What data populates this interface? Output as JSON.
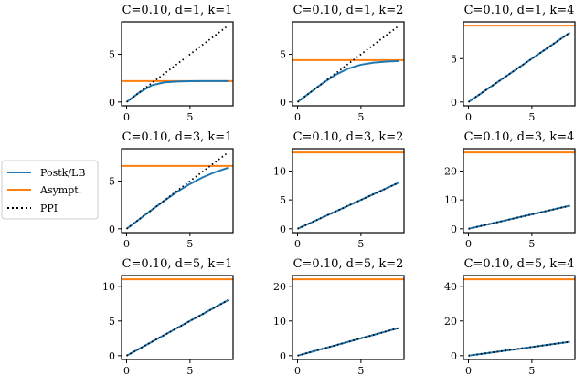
{
  "chart_data": [
    {
      "type": "line",
      "title": "C=0.10, d=1, k=1",
      "xlim": [
        0,
        8
      ],
      "ylim": [
        -0.4,
        8.4
      ],
      "xticks": [
        0,
        5
      ],
      "yticks": [
        0,
        5
      ],
      "asymptote": 2.2,
      "x": [
        0,
        1,
        2,
        3,
        4,
        5,
        6,
        7,
        8
      ],
      "postk": [
        0,
        0.99,
        1.76,
        2.06,
        2.15,
        2.18,
        2.19,
        2.195,
        2.2
      ],
      "ppi": [
        0,
        1,
        2,
        3,
        4,
        5,
        6,
        7,
        8
      ]
    },
    {
      "type": "line",
      "title": "C=0.10, d=1, k=2",
      "xlim": [
        0,
        8
      ],
      "ylim": [
        -0.4,
        8.4
      ],
      "xticks": [
        0,
        5
      ],
      "yticks": [
        0,
        5
      ],
      "asymptote": 4.4,
      "x": [
        0,
        1,
        2,
        3,
        4,
        5,
        6,
        7,
        8
      ],
      "postk": [
        0,
        1.0,
        1.98,
        2.86,
        3.51,
        3.91,
        4.13,
        4.24,
        4.3
      ],
      "ppi": [
        0,
        1,
        2,
        3,
        4,
        5,
        6,
        7,
        8
      ]
    },
    {
      "type": "line",
      "title": "C=0.10, d=1, k=4",
      "xlim": [
        0,
        8
      ],
      "ylim": [
        -0.44,
        9.24
      ],
      "xticks": [
        0,
        5
      ],
      "yticks": [
        0,
        5
      ],
      "asymptote": 8.8,
      "x": [
        0,
        1,
        2,
        3,
        4,
        5,
        6,
        7,
        8
      ],
      "postk": [
        0,
        1,
        2,
        3,
        4,
        5,
        6,
        7,
        8
      ],
      "ppi": [
        0,
        1,
        2,
        3,
        4,
        5,
        6,
        7,
        8
      ]
    },
    {
      "type": "line",
      "title": "C=0.10, d=3, k=1",
      "xlim": [
        0,
        8
      ],
      "ylim": [
        -0.4,
        8.4
      ],
      "xticks": [
        0,
        5
      ],
      "yticks": [
        0,
        5
      ],
      "asymptote": 6.6,
      "x": [
        0,
        1,
        2,
        3,
        4,
        5,
        6,
        7,
        8
      ],
      "postk": [
        0,
        1.0,
        2.0,
        2.97,
        3.9,
        4.7,
        5.4,
        5.95,
        6.4
      ],
      "ppi": [
        0,
        1,
        2,
        3,
        4,
        5,
        6,
        7,
        8
      ]
    },
    {
      "type": "line",
      "title": "C=0.10, d=3, k=2",
      "xlim": [
        0,
        8
      ],
      "ylim": [
        -0.66,
        13.86
      ],
      "xticks": [
        0,
        5
      ],
      "yticks": [
        0,
        5,
        10
      ],
      "asymptote": 13.2,
      "x": [
        0,
        1,
        2,
        3,
        4,
        5,
        6,
        7,
        8
      ],
      "postk": [
        0,
        1,
        2,
        3,
        4,
        5,
        6,
        7,
        8
      ],
      "ppi": [
        0,
        1,
        2,
        3,
        4,
        5,
        6,
        7,
        8
      ]
    },
    {
      "type": "line",
      "title": "C=0.10, d=3, k=4",
      "xlim": [
        0,
        8
      ],
      "ylim": [
        -1.32,
        27.72
      ],
      "xticks": [
        0,
        5
      ],
      "yticks": [
        0,
        10,
        20
      ],
      "asymptote": 26.4,
      "x": [
        0,
        1,
        2,
        3,
        4,
        5,
        6,
        7,
        8
      ],
      "postk": [
        0,
        1,
        2,
        3,
        4,
        5,
        6,
        7,
        8
      ],
      "ppi": [
        0,
        1,
        2,
        3,
        4,
        5,
        6,
        7,
        8
      ]
    },
    {
      "type": "line",
      "title": "C=0.10, d=5, k=1",
      "xlim": [
        0,
        8
      ],
      "ylim": [
        -0.55,
        11.55
      ],
      "xticks": [
        0,
        5
      ],
      "yticks": [
        0,
        5,
        10
      ],
      "asymptote": 11,
      "x": [
        0,
        1,
        2,
        3,
        4,
        5,
        6,
        7,
        8
      ],
      "postk": [
        0,
        1,
        2,
        3,
        4,
        5,
        6,
        7,
        8
      ],
      "ppi": [
        0,
        1,
        2,
        3,
        4,
        5,
        6,
        7,
        8
      ]
    },
    {
      "type": "line",
      "title": "C=0.10, d=5, k=2",
      "xlim": [
        0,
        8
      ],
      "ylim": [
        -1.1,
        23.1
      ],
      "xticks": [
        0,
        5
      ],
      "yticks": [
        0,
        10,
        20
      ],
      "asymptote": 22,
      "x": [
        0,
        1,
        2,
        3,
        4,
        5,
        6,
        7,
        8
      ],
      "postk": [
        0,
        1,
        2,
        3,
        4,
        5,
        6,
        7,
        8
      ],
      "ppi": [
        0,
        1,
        2,
        3,
        4,
        5,
        6,
        7,
        8
      ]
    },
    {
      "type": "line",
      "title": "C=0.10, d=5, k=4",
      "xlim": [
        0,
        8
      ],
      "ylim": [
        -2.2,
        46.2
      ],
      "xticks": [
        0,
        5
      ],
      "yticks": [
        0,
        20,
        40
      ],
      "asymptote": 44,
      "x": [
        0,
        1,
        2,
        3,
        4,
        5,
        6,
        7,
        8
      ],
      "postk": [
        0,
        1,
        2,
        3,
        4,
        5,
        6,
        7,
        8
      ],
      "ppi": [
        0,
        1,
        2,
        3,
        4,
        5,
        6,
        7,
        8
      ]
    }
  ],
  "legend": {
    "placement": "left",
    "entries": [
      {
        "label": "Postk/LB",
        "color": "#1f77b4",
        "style": "solid"
      },
      {
        "label": "Asympt.",
        "color": "#ff7f0e",
        "style": "solid"
      },
      {
        "label": "PPI",
        "color": "#000000",
        "style": "dotted"
      }
    ]
  }
}
